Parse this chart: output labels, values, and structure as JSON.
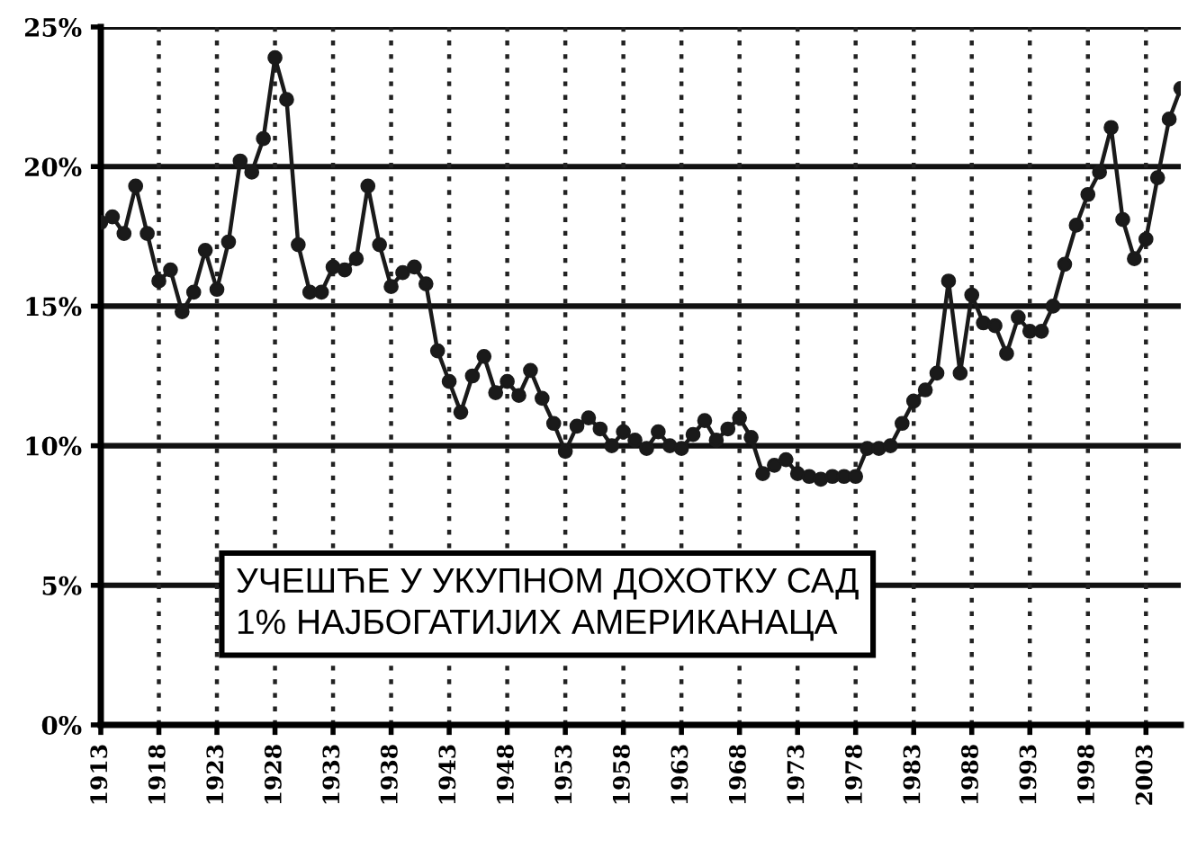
{
  "chart_data": {
    "type": "line",
    "x": [
      1913,
      1914,
      1915,
      1916,
      1917,
      1918,
      1919,
      1920,
      1921,
      1922,
      1923,
      1924,
      1925,
      1926,
      1927,
      1928,
      1929,
      1930,
      1931,
      1932,
      1933,
      1934,
      1935,
      1936,
      1937,
      1938,
      1939,
      1940,
      1941,
      1942,
      1943,
      1944,
      1945,
      1946,
      1947,
      1948,
      1949,
      1950,
      1951,
      1952,
      1953,
      1954,
      1955,
      1956,
      1957,
      1958,
      1959,
      1960,
      1961,
      1962,
      1963,
      1964,
      1965,
      1966,
      1967,
      1968,
      1969,
      1970,
      1971,
      1972,
      1973,
      1974,
      1975,
      1976,
      1977,
      1978,
      1979,
      1980,
      1981,
      1982,
      1983,
      1984,
      1985,
      1986,
      1987,
      1988,
      1989,
      1990,
      1991,
      1992,
      1993,
      1994,
      1995,
      1996,
      1997,
      1998,
      1999,
      2000,
      2001,
      2002,
      2003,
      2004,
      2005,
      2006
    ],
    "series": [
      {
        "color": "#1a1a1a",
        "values": [
          18.0,
          18.2,
          17.6,
          19.3,
          17.6,
          15.9,
          16.3,
          14.8,
          15.5,
          17.0,
          15.6,
          17.3,
          20.2,
          19.8,
          21.0,
          23.9,
          22.4,
          17.2,
          15.5,
          15.5,
          16.4,
          16.3,
          16.7,
          19.3,
          17.2,
          15.7,
          16.2,
          16.4,
          15.8,
          13.4,
          12.3,
          11.2,
          12.5,
          13.2,
          11.9,
          12.3,
          11.8,
          12.7,
          11.7,
          10.8,
          9.8,
          10.7,
          11.0,
          10.6,
          10.0,
          10.5,
          10.2,
          9.9,
          10.5,
          10.0,
          9.9,
          10.4,
          10.9,
          10.2,
          10.6,
          11.0,
          10.3,
          9.0,
          9.3,
          9.5,
          9.0,
          8.9,
          8.8,
          8.9,
          8.9,
          8.9,
          9.9,
          9.9,
          10.0,
          10.8,
          11.6,
          12.0,
          12.6,
          15.9,
          12.6,
          15.4,
          14.4,
          14.3,
          13.3,
          14.6,
          14.1,
          14.1,
          15.0,
          16.5,
          17.9,
          19.0,
          19.8,
          21.4,
          18.1,
          16.7,
          17.4,
          19.6,
          21.7,
          22.8
        ]
      }
    ],
    "xlim": [
      1913,
      2006
    ],
    "xticks": [
      1913,
      1918,
      1923,
      1928,
      1933,
      1938,
      1943,
      1948,
      1953,
      1958,
      1963,
      1968,
      1973,
      1978,
      1983,
      1988,
      1993,
      1998,
      2003
    ],
    "ylim": [
      0,
      25
    ],
    "yticks": [
      {
        "value": 0,
        "label": "0%"
      },
      {
        "value": 5,
        "label": "5%"
      },
      {
        "value": 10,
        "label": "10%"
      },
      {
        "value": 15,
        "label": "15%"
      },
      {
        "value": 20,
        "label": "20%"
      },
      {
        "value": 25,
        "label": "25%"
      }
    ],
    "grid": true,
    "marker": "circle",
    "line_style": "solid",
    "annotations": [
      "УЧЕШЋЕ У УКУПНОМ ДОХОТКУ САД\n1% НАЈБОГАТИЈИХ АМЕРИКАНАЦА"
    ]
  }
}
